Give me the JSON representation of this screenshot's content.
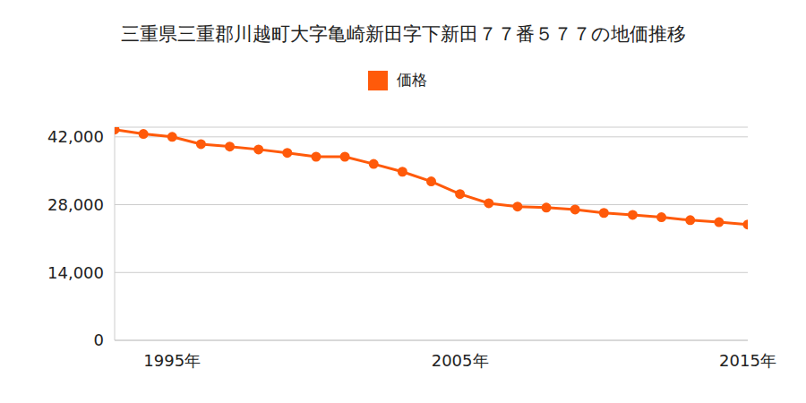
{
  "chart_data": {
    "type": "line",
    "title": "三重県三重郡川越町大字亀崎新田字下新田７７番５７７の地価推移",
    "x": [
      1993,
      1994,
      1995,
      1996,
      1997,
      1998,
      1999,
      2000,
      2001,
      2002,
      2003,
      2004,
      2005,
      2006,
      2007,
      2008,
      2009,
      2010,
      2011,
      2012,
      2013,
      2014,
      2015
    ],
    "series": [
      {
        "name": "価格",
        "color": "#ff5a0a",
        "marker": "circle",
        "line_style": "solid",
        "values": [
          43500,
          42600,
          42000,
          40500,
          40000,
          39400,
          38700,
          37900,
          37900,
          36400,
          34800,
          32800,
          30200,
          28300,
          27600,
          27400,
          27000,
          26300,
          25900,
          25400,
          24800,
          24400,
          23900
        ]
      }
    ],
    "xlim": [
      1993,
      2015
    ],
    "xticks": [
      {
        "value": 1995,
        "label": "1995年"
      },
      {
        "value": 2005,
        "label": "2005年"
      },
      {
        "value": 2015,
        "label": "2015年"
      }
    ],
    "ylim": [
      0,
      44000
    ],
    "yticks": [
      0,
      {
        "value": 14000,
        "label": "14,000"
      },
      {
        "value": 28000,
        "label": "28,000"
      },
      {
        "value": 42000,
        "label": "42,000"
      }
    ],
    "grid": true,
    "legend": "top"
  }
}
